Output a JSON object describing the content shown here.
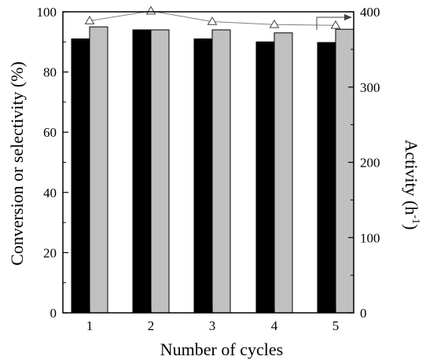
{
  "chart_data": {
    "type": "bar",
    "categories": [
      "1",
      "2",
      "3",
      "4",
      "5"
    ],
    "series": [
      {
        "values": [
          91,
          94,
          91,
          90,
          89.8
        ],
        "color": "#000000",
        "axis": "left"
      },
      {
        "values": [
          95,
          94,
          94,
          93,
          94.2
        ],
        "color": "#c0c0c0",
        "axis": "left"
      }
    ],
    "line_series": [
      {
        "values": [
          388,
          401,
          387,
          383,
          382
        ],
        "axis": "right",
        "marker": "open-triangle",
        "color": "#808080"
      }
    ],
    "xlabel": "Number of cycles",
    "ylabel": "Conversion or selectivity (%)",
    "y2label_main": "Activity (h",
    "y2label_sup": "-1",
    "y2label_end": ")",
    "ylim": [
      0,
      100
    ],
    "y2lim": [
      0,
      400
    ],
    "yticks": [
      "0",
      "20",
      "40",
      "60",
      "80",
      "100"
    ],
    "y2ticks": [
      "0",
      "100",
      "200",
      "300",
      "400"
    ],
    "annotation": "arrow from activity line pointing to right axis",
    "grid": false,
    "legend": "none"
  }
}
